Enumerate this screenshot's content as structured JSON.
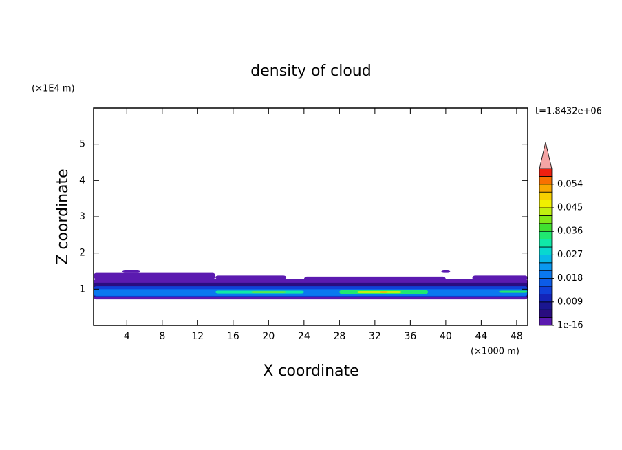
{
  "chart_data": {
    "type": "contour",
    "title": "density of cloud",
    "xlabel": "X coordinate",
    "ylabel": "Z coordinate",
    "x_unit": "(×1000 m)",
    "y_unit": "(×1E4 m)",
    "annotation": "t=1.8432e+06",
    "xlim": [
      0.25,
      49.25
    ],
    "ylim": [
      0,
      6
    ],
    "xticks": [
      4,
      8,
      12,
      16,
      20,
      24,
      28,
      32,
      36,
      40,
      44,
      48
    ],
    "yticks": [
      1,
      2,
      3,
      4,
      5
    ],
    "regions": [
      {
        "x": [
          0.25,
          49.25
        ],
        "z": [
          0.72,
          1.28
        ],
        "value": 0.001
      },
      {
        "x": [
          0.25,
          14
        ],
        "z": [
          1.28,
          1.45
        ],
        "value": 0.001
      },
      {
        "x": [
          14,
          22
        ],
        "z": [
          1.28,
          1.38
        ],
        "value": 0.001
      },
      {
        "x": [
          24,
          40
        ],
        "z": [
          1.15,
          1.35
        ],
        "value": 0.001
      },
      {
        "x": [
          43,
          49.25
        ],
        "z": [
          1.25,
          1.38
        ],
        "value": 0.001
      },
      {
        "x": [
          3.5,
          5.5
        ],
        "z": [
          1.45,
          1.52
        ],
        "value": 0.001
      },
      {
        "x": [
          39.5,
          40.5
        ],
        "z": [
          1.45,
          1.52
        ],
        "value": 0.001
      },
      {
        "x": [
          0.25,
          49.25
        ],
        "z": [
          0.78,
          1.18
        ],
        "value": 0.005
      },
      {
        "x": [
          0.25,
          49.25
        ],
        "z": [
          0.8,
          1.08
        ],
        "value": 0.012
      },
      {
        "x": [
          0.25,
          49.25
        ],
        "z": [
          0.82,
          1.0
        ],
        "value": 0.02
      },
      {
        "x": [
          14,
          24
        ],
        "z": [
          0.88,
          0.96
        ],
        "value": 0.03
      },
      {
        "x": [
          28,
          38
        ],
        "z": [
          0.86,
          0.98
        ],
        "value": 0.033
      },
      {
        "x": [
          46,
          49.25
        ],
        "z": [
          0.9,
          0.96
        ],
        "value": 0.035
      },
      {
        "x": [
          18,
          22
        ],
        "z": [
          0.9,
          0.94
        ],
        "value": 0.04
      },
      {
        "x": [
          30,
          35
        ],
        "z": [
          0.89,
          0.95
        ],
        "value": 0.042
      },
      {
        "x": [
          32.5,
          33.5
        ],
        "z": [
          0.9,
          0.94
        ],
        "value": 0.052
      }
    ],
    "colorbar": {
      "lim": [
        0,
        0.06
      ],
      "ticks": [
        {
          "value": 1e-16,
          "label": "1e-16"
        },
        0.009,
        0.018,
        0.027,
        0.036,
        0.045,
        0.054
      ],
      "colors": [
        "#5b1ab0",
        "#2a0c80",
        "#1a1690",
        "#1424b8",
        "#1040d8",
        "#0c5ce8",
        "#0a78f0",
        "#0a98f0",
        "#08b8e8",
        "#08d8d0",
        "#10e8a8",
        "#20e870",
        "#40e030",
        "#80e818",
        "#c0f010",
        "#f0f000",
        "#f8d000",
        "#f8a800",
        "#f87000",
        "#f02010"
      ],
      "extend_color": "#f4a4a4"
    }
  }
}
